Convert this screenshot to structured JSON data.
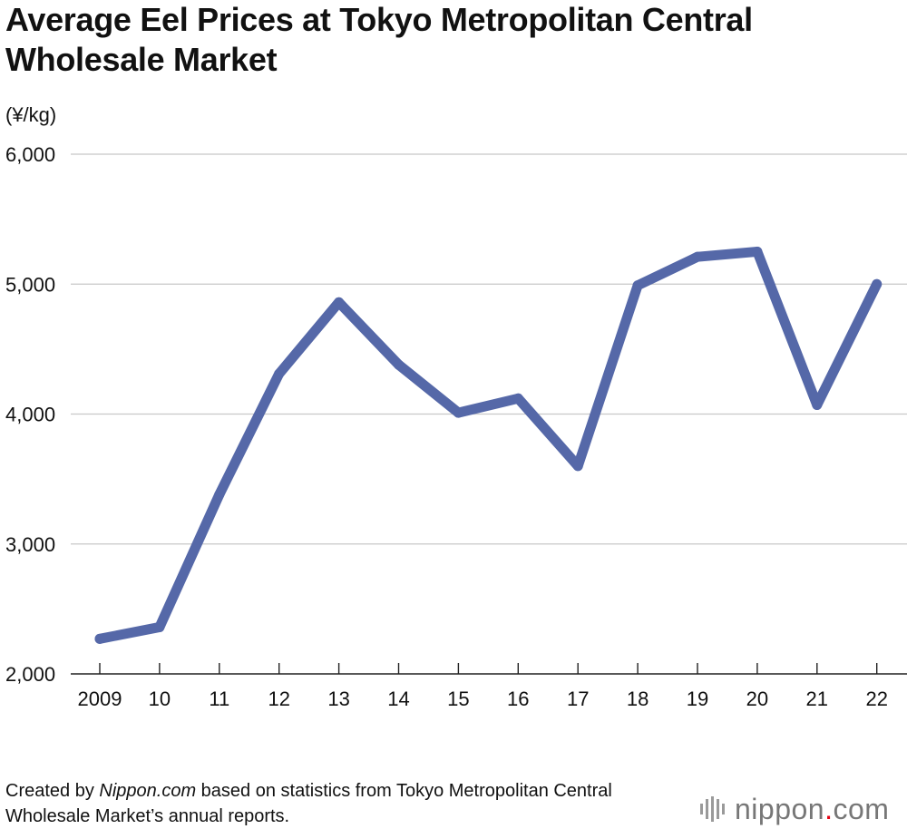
{
  "chart_data": {
    "type": "line",
    "title": "Average Eel Prices at Tokyo Metropolitan Central Wholesale Market",
    "ylabel": "(¥/kg)",
    "xlabel": "",
    "categories": [
      "2009",
      "10",
      "11",
      "12",
      "13",
      "14",
      "15",
      "16",
      "17",
      "18",
      "19",
      "20",
      "21",
      "22"
    ],
    "series": [
      {
        "name": "Average eel price",
        "color": "#5568a8",
        "values": [
          2270,
          2360,
          3380,
          4310,
          4860,
          4380,
          4010,
          4120,
          3600,
          4990,
          5210,
          5250,
          4070,
          5000
        ]
      }
    ],
    "ylim": [
      2000,
      6000
    ],
    "yticks": [
      2000,
      3000,
      4000,
      5000,
      6000
    ],
    "ytick_labels": [
      "2,000",
      "3,000",
      "4,000",
      "5,000",
      "6,000"
    ],
    "grid": true
  },
  "footer": {
    "prefix": "Created by ",
    "source_name": "Nippon.com",
    "suffix": " based on statistics from Tokyo Metropolitan Central Wholesale Market’s annual reports."
  },
  "logo": {
    "text": "nippon",
    "dot": ".",
    "domain": "com"
  }
}
